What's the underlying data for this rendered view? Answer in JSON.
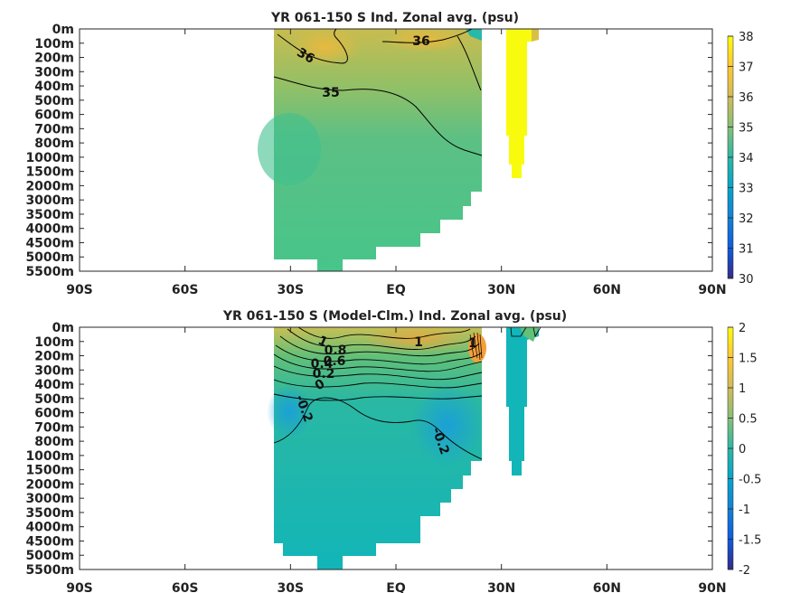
{
  "chart_data": [
    {
      "type": "heatmap",
      "title": "YR 061-150 S Ind. Zonal avg. (psu)",
      "x_ticks": [
        "90S",
        "60S",
        "30S",
        "EQ",
        "30N",
        "60N",
        "90N"
      ],
      "x_tick_values": [
        -90,
        -60,
        -30,
        0,
        30,
        60,
        90
      ],
      "xlim": [
        -90,
        90
      ],
      "y_ticks": [
        "0m",
        "100m",
        "200m",
        "300m",
        "400m",
        "500m",
        "600m",
        "700m",
        "800m",
        "1000m",
        "1500m",
        "2000m",
        "3000m",
        "3500m",
        "4000m",
        "4500m",
        "5000m",
        "5500m"
      ],
      "colorbar": {
        "min": 30,
        "max": 38,
        "ticks": [
          "38",
          "37",
          "36",
          "35",
          "34",
          "33",
          "32",
          "31",
          "30"
        ]
      },
      "contour_labels": [
        "36",
        "36",
        "35"
      ]
    },
    {
      "type": "heatmap",
      "title": "YR 061-150 S (Model-Clm.) Ind. Zonal avg. (psu)",
      "x_ticks": [
        "90S",
        "60S",
        "30S",
        "EQ",
        "30N",
        "60N",
        "90N"
      ],
      "x_tick_values": [
        -90,
        -60,
        -30,
        0,
        30,
        60,
        90
      ],
      "xlim": [
        -90,
        90
      ],
      "y_ticks": [
        "0m",
        "100m",
        "200m",
        "300m",
        "400m",
        "500m",
        "600m",
        "700m",
        "800m",
        "1000m",
        "1500m",
        "2000m",
        "3000m",
        "3500m",
        "4000m",
        "4500m",
        "5000m",
        "5500m"
      ],
      "colorbar": {
        "min": -2,
        "max": 2,
        "ticks": [
          "2",
          "1.5",
          "1",
          "0.5",
          "0",
          "-0.5",
          "-1",
          "-1.5",
          "-2"
        ]
      },
      "contour_labels": [
        "1",
        "0.8",
        "0.6",
        "0.4",
        "0.2",
        "0",
        "1",
        "1",
        "-0.2",
        "-0.2"
      ]
    }
  ]
}
